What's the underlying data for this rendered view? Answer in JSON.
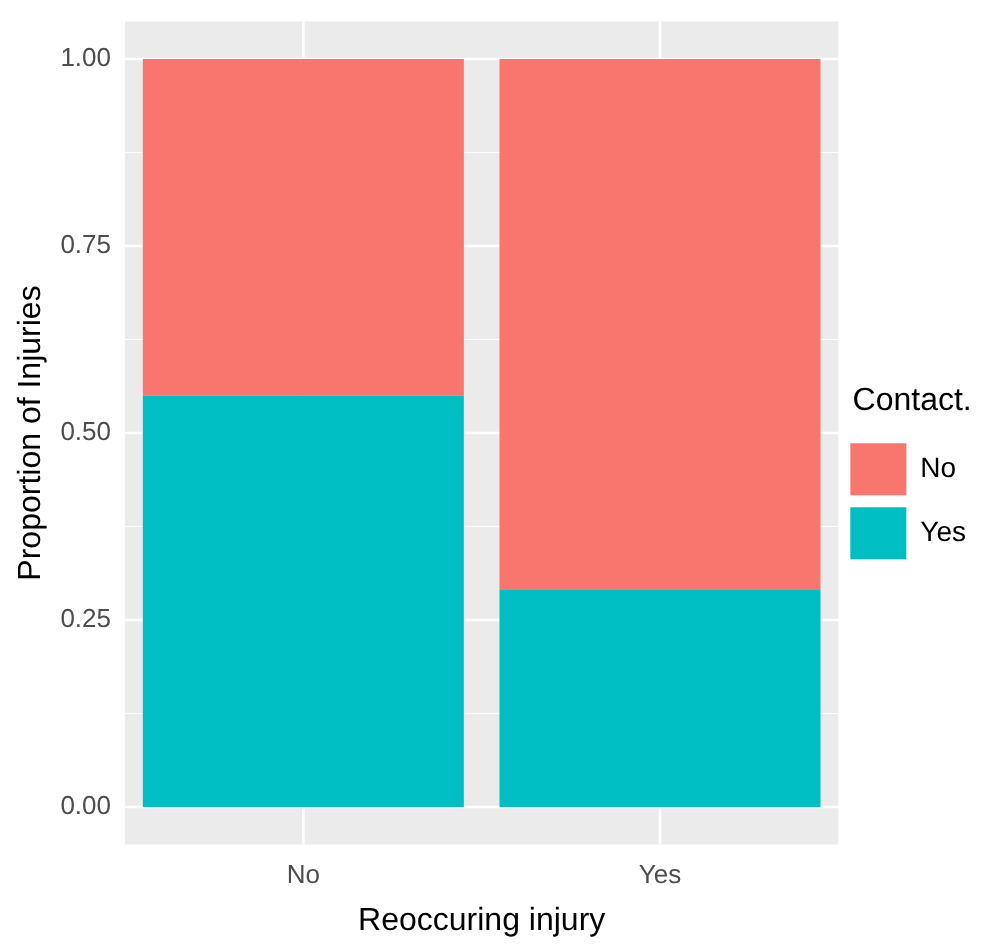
{
  "chart_data": {
    "type": "bar",
    "xlabel": "Reoccuring injury",
    "ylabel": "Proportion of Injuries",
    "legend_title": "Contact.",
    "categories": [
      "No",
      "Yes"
    ],
    "stacked": true,
    "series": [
      {
        "name": "Yes",
        "color": "#00bfc4",
        "values": [
          0.55,
          0.29
        ]
      },
      {
        "name": "No",
        "color": "#f8766d",
        "values": [
          0.45,
          0.71
        ]
      }
    ],
    "ylim": [
      -0.05,
      1.05
    ],
    "yticks": [
      {
        "value": 0,
        "label": "0.00"
      },
      {
        "value": 0.25,
        "label": "0.25"
      },
      {
        "value": 0.5,
        "label": "0.50"
      },
      {
        "value": 0.75,
        "label": "0.75"
      },
      {
        "value": 1,
        "label": "1.00"
      }
    ],
    "grid": true,
    "legend": "right"
  }
}
